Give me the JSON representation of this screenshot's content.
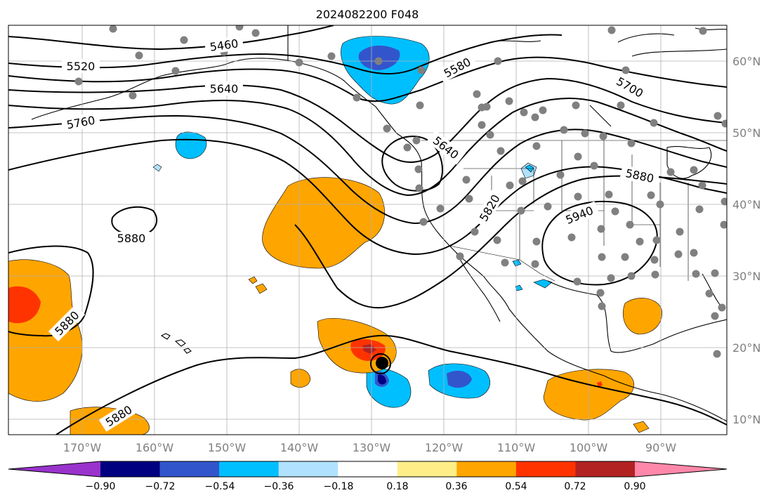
{
  "title": "2024082200 F048",
  "map": {
    "x_ticks": [
      "170°W",
      "160°W",
      "150°W",
      "140°W",
      "130°W",
      "120°W",
      "110°W",
      "100°W",
      "90°W"
    ],
    "y_ticks": [
      "60°N",
      "50°N",
      "40°N",
      "30°N",
      "20°N",
      "10°N"
    ],
    "contour_labels": [
      {
        "text": "5460"
      },
      {
        "text": "5520"
      },
      {
        "text": "5580"
      },
      {
        "text": "5640"
      },
      {
        "text": "5700"
      },
      {
        "text": "5760"
      },
      {
        "text": "5640"
      },
      {
        "text": "5880"
      },
      {
        "text": "5820"
      },
      {
        "text": "5940"
      },
      {
        "text": "5880"
      },
      {
        "text": "5880"
      },
      {
        "text": "5880"
      }
    ],
    "gridlines": true,
    "station_marker_color": "#808080",
    "storm_marker": "hurricane-symbol"
  },
  "colorbar": {
    "ticks": [
      "−0.90",
      "−0.72",
      "−0.54",
      "−0.36",
      "−0.18",
      "0.18",
      "0.36",
      "0.54",
      "0.72",
      "0.90"
    ],
    "colors": [
      "#9933cc",
      "#000080",
      "#3355cc",
      "#00bfff",
      "#b0e2ff",
      "#ffffff",
      "#ffee88",
      "#ffa500",
      "#ff3300",
      "#b22222",
      "#ff88aa"
    ]
  }
}
